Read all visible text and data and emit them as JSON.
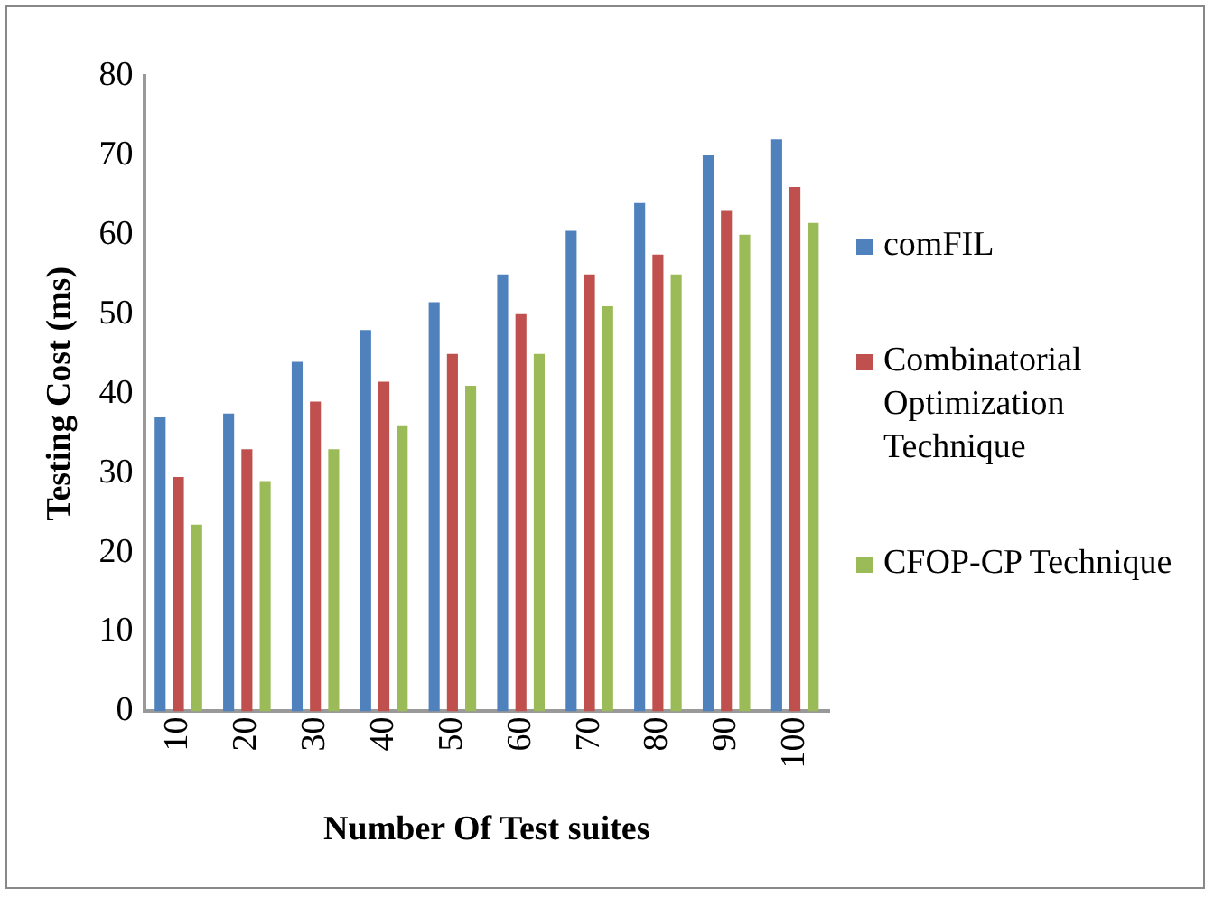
{
  "chart_data": {
    "type": "bar",
    "xlabel": "Number Of Test suites",
    "ylabel": "Testing Cost (ms)",
    "categories": [
      "10",
      "20",
      "30",
      "40",
      "50",
      "60",
      "70",
      "80",
      "90",
      "100"
    ],
    "series": [
      {
        "name": "comFIL",
        "color": "#4f81bd",
        "values": [
          37,
          37.5,
          44,
          48,
          51.5,
          55,
          60.5,
          64,
          70,
          72
        ]
      },
      {
        "name": "Combinatorial Optimization Technique",
        "color": "#c0504d",
        "values": [
          29.5,
          33,
          39,
          41.5,
          45,
          50,
          55,
          57.5,
          63,
          66
        ]
      },
      {
        "name": "CFOP-CP Technique",
        "color": "#9bbb59",
        "values": [
          23.5,
          29,
          33,
          36,
          41,
          45,
          51,
          55,
          60,
          61.5
        ]
      }
    ],
    "ylim": [
      0,
      80
    ],
    "yticks": [
      0,
      10,
      20,
      30,
      40,
      50,
      60,
      70,
      80
    ],
    "grid": false,
    "legend": "right"
  }
}
